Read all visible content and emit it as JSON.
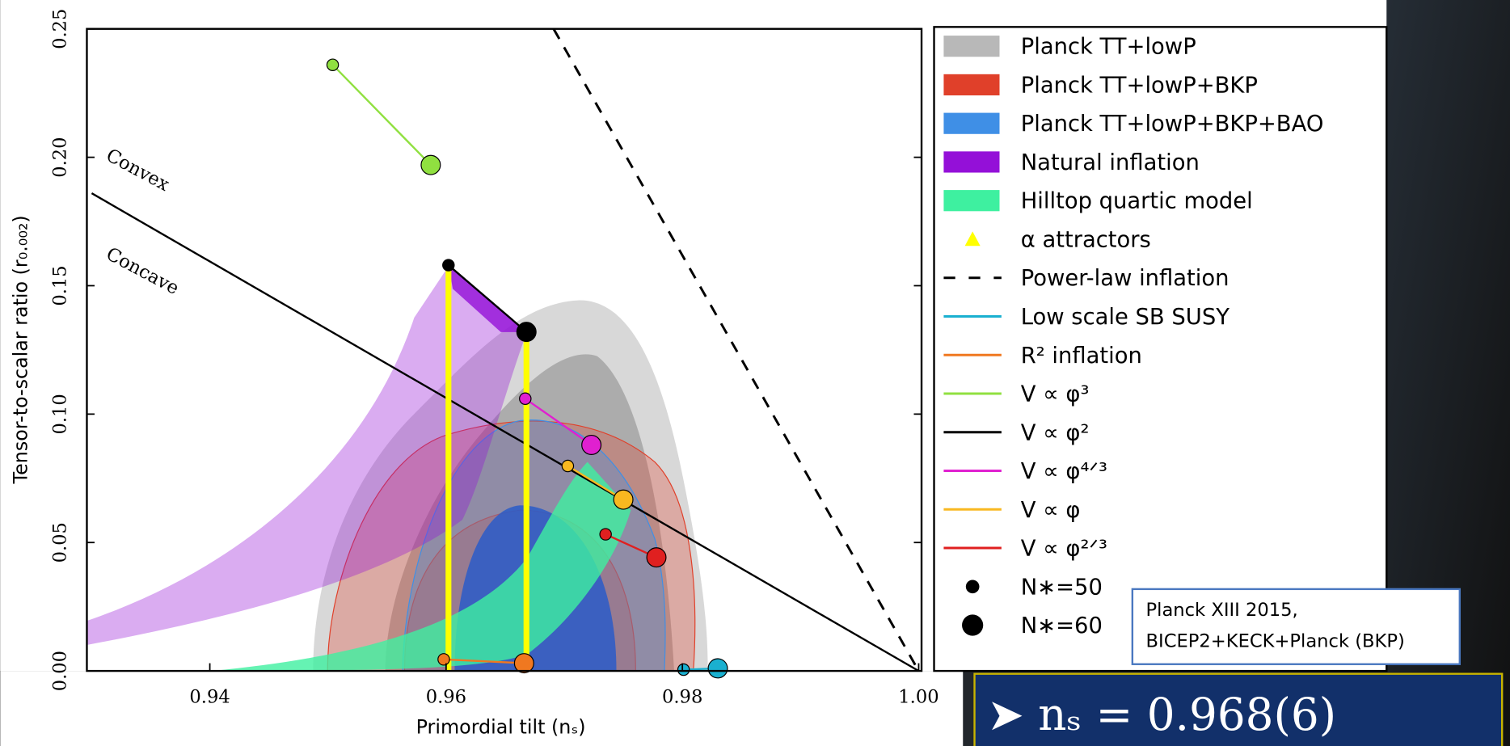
{
  "chart_data": {
    "type": "scatter",
    "x_label": "Primordial tilt (nₛ)",
    "y_label": "Tensor-to-scalar ratio (r₀.₀₀₂)",
    "xlim": [
      0.93,
      1.0
    ],
    "ylim": [
      0,
      0.25
    ],
    "xticks": [
      0.94,
      0.96,
      0.98,
      {
        "value": 1,
        "label": "1.00"
      }
    ],
    "yticks": [
      {
        "value": 0,
        "label": "0.00"
      },
      0.05,
      {
        "value": 0.1,
        "label": "0.10"
      },
      0.15,
      {
        "value": 0.2,
        "label": "0.20"
      },
      0.25
    ],
    "series": [
      {
        "name": "Planck TT+lowP",
        "color": "#b8b8b8",
        "style": "region"
      },
      {
        "name": "Planck TT+lowP+BKP",
        "color": "#e0402a",
        "style": "region"
      },
      {
        "name": "Planck TT+lowP+BKP+BAO",
        "color": "#3f8fe6",
        "style": "region"
      },
      {
        "name": "Natural inflation",
        "color": "#9410d8",
        "style": "region"
      },
      {
        "name": "Hilltop quartic model",
        "color": "#3ef0a0",
        "style": "region"
      },
      {
        "name": "α attractors",
        "color": "#ffff00",
        "style": "triangle",
        "x": [
          0.9602,
          0.9602,
          null,
          0.9668,
          0.9668
        ],
        "y": [
          0.158,
          0,
          null,
          0.132,
          0
        ]
      },
      {
        "name": "Power-law inflation",
        "color": "#000000",
        "style": "dashed",
        "x": [
          0.9691,
          1.0
        ],
        "y": [
          0.25,
          0
        ]
      },
      {
        "name": "Low scale SB SUSY",
        "color": "#1ab0d0",
        "style": "line",
        "x": [
          0.9801,
          0.983
        ],
        "y": [
          0.0005,
          0.001
        ]
      },
      {
        "name": "R² inflation",
        "color": "#f07820",
        "style": "line",
        "x": [
          0.9598,
          0.9666
        ],
        "y": [
          0.0045,
          0.003
        ]
      },
      {
        "name": "V ∝ φ³",
        "color": "#90e040",
        "style": "line",
        "x": [
          0.9504,
          0.9587
        ],
        "y": [
          0.236,
          0.197
        ]
      },
      {
        "name": "V ∝ φ²",
        "color": "#000000",
        "style": "line",
        "x": [
          0.9602,
          0.9668
        ],
        "y": [
          0.158,
          0.132
        ]
      },
      {
        "name": "V ∝ φ⁴ᐟ³",
        "color": "#e020d0",
        "style": "line",
        "x": [
          0.9667,
          0.9723
        ],
        "y": [
          0.106,
          0.088
        ]
      },
      {
        "name": "V ∝ φ",
        "color": "#f8b820",
        "style": "line",
        "x": [
          0.9703,
          0.975
        ],
        "y": [
          0.0798,
          0.0667
        ]
      },
      {
        "name": "V ∝ φ²ᐟ³",
        "color": "#e02020",
        "style": "line",
        "x": [
          0.9735,
          0.9778
        ],
        "y": [
          0.0532,
          0.0442
        ]
      },
      {
        "name": "N∗=50",
        "color": "#000000",
        "style": "dot-small"
      },
      {
        "name": "N∗=60",
        "color": "#000000",
        "style": "dot-large"
      }
    ],
    "boundary": {
      "x": [
        0.93,
        1.0
      ],
      "y": [
        0.186,
        0
      ]
    },
    "annotations": [
      "Convex",
      "Concave"
    ],
    "reference": [
      "Planck XIII 2015,",
      "BICEP2+KECK+Planck (BKP)"
    ],
    "result": "➤ nₛ = 0.968(6)"
  }
}
